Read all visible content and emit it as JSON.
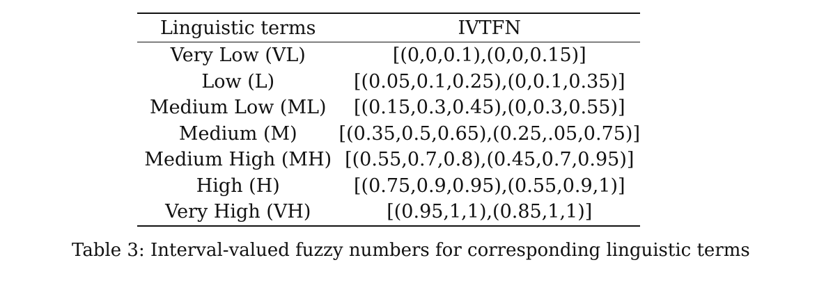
{
  "table": {
    "headers": [
      "Linguistic terms",
      "IVTFN"
    ],
    "rows": [
      [
        "Very Low (VL)",
        "[(0,0,0.1),(0,0,0.15)]"
      ],
      [
        "Low (L)",
        "[(0.05,0.1,0.25),(0,0.1,0.35)]"
      ],
      [
        "Medium Low (ML)",
        "[(0.15,0.3,0.45),(0,0.3,0.55)]"
      ],
      [
        "Medium (M)",
        "[(0.35,0.5,0.65),(0.25,.05,0.75)]"
      ],
      [
        "Medium High (MH)",
        "[(0.55,0.7,0.8),(0.45,0.7,0.95)]"
      ],
      [
        "High (H)",
        "[(0.75,0.9,0.95),(0.55,0.9,1)]"
      ],
      [
        "Very High (VH)",
        "[(0.95,1,1),(0.85,1,1)]"
      ]
    ]
  },
  "caption": "Table 3: Interval-valued fuzzy numbers for corresponding linguistic terms"
}
